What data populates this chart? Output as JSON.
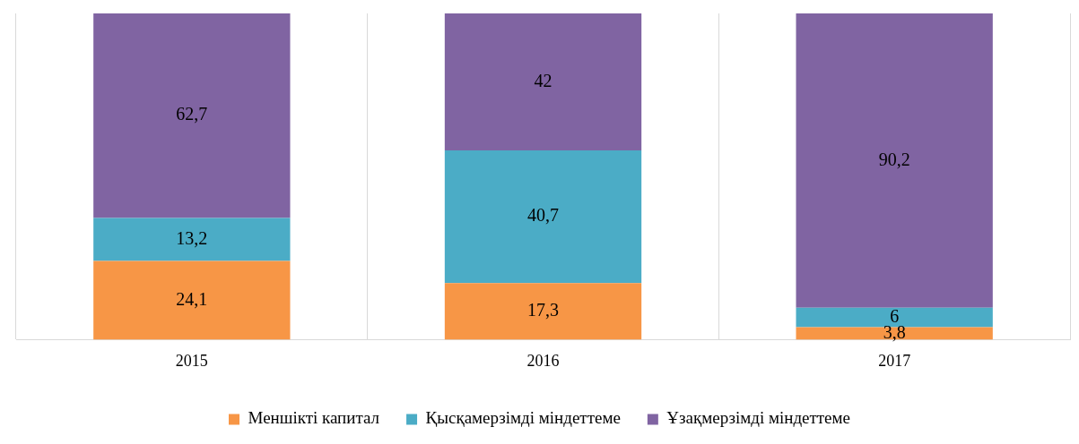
{
  "chart_data": {
    "type": "bar",
    "stacked": true,
    "categories": [
      "2015",
      "2016",
      "2017"
    ],
    "series": [
      {
        "name": "Меншікті капитал",
        "color": "#f79646",
        "values": [
          24.1,
          17.3,
          3.8
        ],
        "value_labels": [
          "24,1",
          "17,3",
          "3,8"
        ]
      },
      {
        "name": "Қысқамерзімді міндеттеме",
        "color": "#4bacc6",
        "values": [
          13.2,
          40.7,
          6
        ],
        "value_labels": [
          "13,2",
          "40,7",
          "6"
        ]
      },
      {
        "name": "Ұзақмерзімді міндеттеме",
        "color": "#8064a2",
        "values": [
          62.7,
          42,
          90.2
        ],
        "value_labels": [
          "62,7",
          "42",
          "90,2"
        ]
      }
    ],
    "ylim": [
      0,
      100
    ],
    "tick_labels": "x",
    "grid": "x",
    "legend": "bottom"
  }
}
